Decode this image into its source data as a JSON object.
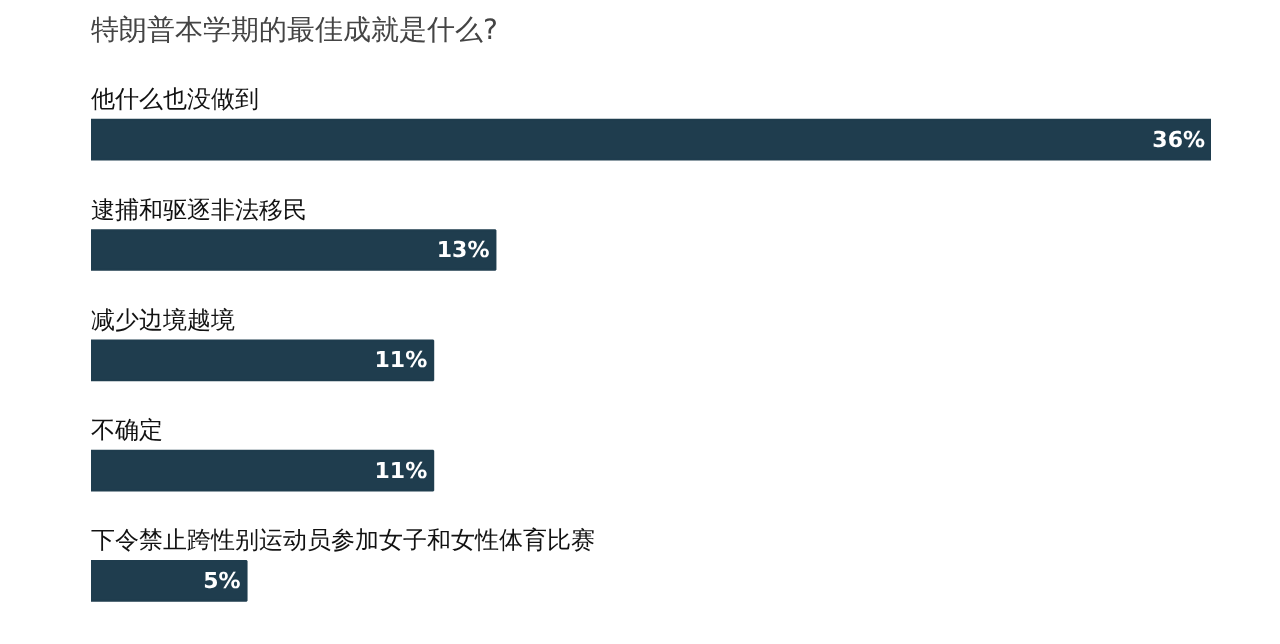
{
  "chart_data": {
    "type": "bar",
    "orientation": "horizontal",
    "title": "特朗普本学期的最佳成就是什么?",
    "categories": [
      "他什么也没做到",
      "逮捕和驱逐非法移民",
      "减少边境越境",
      "不确定",
      "下令禁止跨性别运动员参加女子和女性体育比赛"
    ],
    "values": [
      36,
      13,
      11,
      11,
      5
    ],
    "value_labels": [
      "36%",
      "13%",
      "11%",
      "11%",
      "5%"
    ],
    "color": "#1f3d4e"
  }
}
